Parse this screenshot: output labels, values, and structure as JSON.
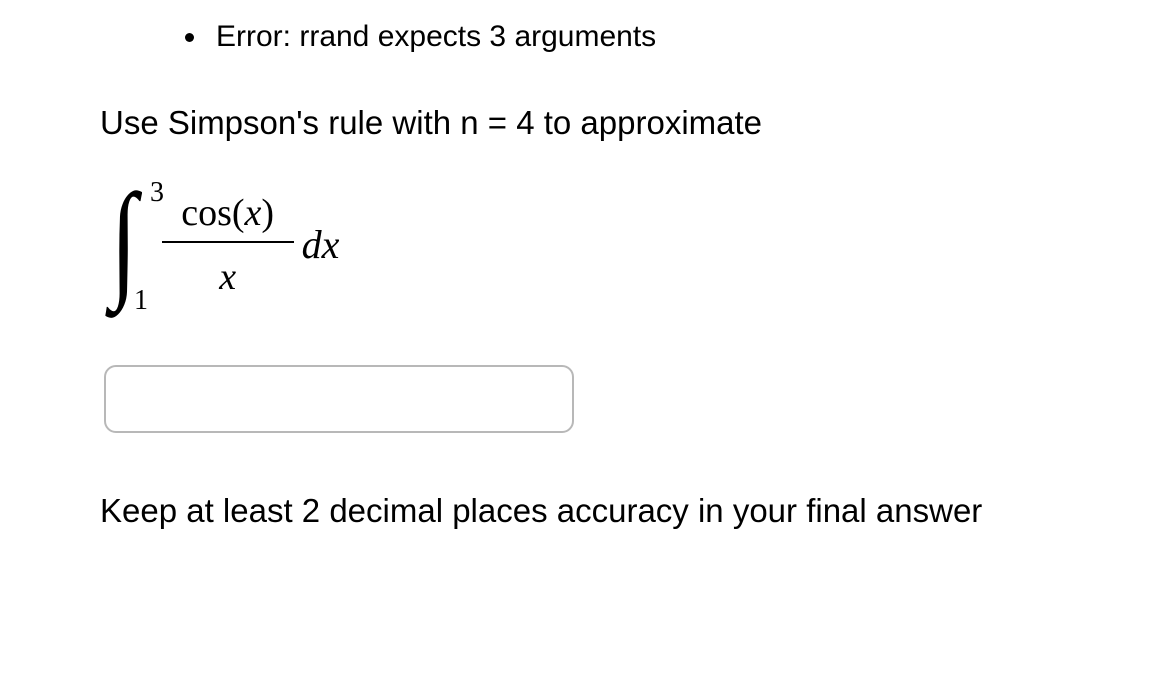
{
  "error": {
    "message": "Error: rrand expects 3 arguments"
  },
  "instruction": "Use Simpson's rule with n = 4 to approximate",
  "integral": {
    "lower_limit": "1",
    "upper_limit": "3",
    "numerator_func": "cos",
    "numerator_arg": "x",
    "denominator": "x",
    "differential": "dx"
  },
  "answer_value": "",
  "followup": "Keep at least 2 decimal places accuracy in your final answer",
  "colors": {
    "text": "#000000",
    "background": "#ffffff",
    "input_border": "#b8b8b8"
  }
}
